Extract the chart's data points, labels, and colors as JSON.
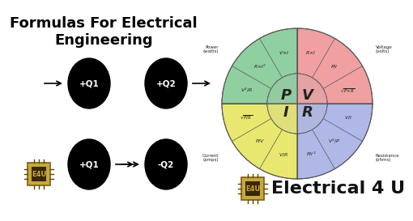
{
  "title_line1": "Formulas For Electrical",
  "title_line2": "Engineering",
  "background_color": "#ffffff",
  "title_color": "#000000",
  "title_fontsize": 13,
  "pie_colors": {
    "green": "#90d0a0",
    "pink": "#f0a0a0",
    "yellow": "#e8e870",
    "blue": "#b0b8e8"
  },
  "center_labels": [
    "P",
    "V",
    "I",
    "R"
  ],
  "logo_text": "E4U",
  "brand_text": "Electrical 4 U",
  "brand_fontsize": 16,
  "logo_color": "#c8a840"
}
